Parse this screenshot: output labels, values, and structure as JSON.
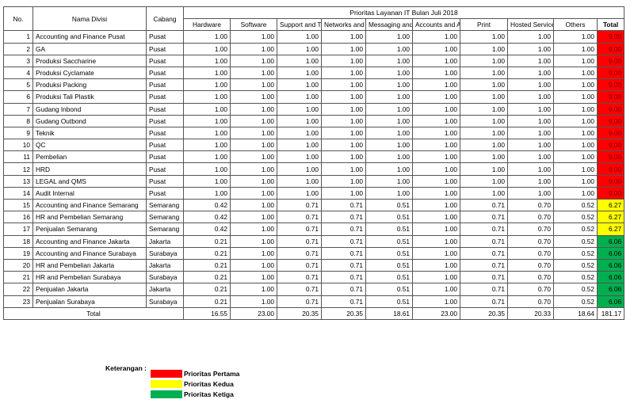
{
  "header": {
    "no": "No.",
    "divisi": "Nama Divisi",
    "cabang": "Cabang",
    "title": "Prioritas Layanan IT Bulan Juli 2018",
    "columns": [
      "Hardware",
      "Software",
      "Support and Training",
      "Networks and Connectivity",
      "Messaging and Collaboration",
      "Accounts and Access",
      "Print",
      "Hosted Services",
      "Others"
    ],
    "total": "Total"
  },
  "colors": {
    "red": "#ff0000",
    "yellow": "#ffff00",
    "green": "#00b050"
  },
  "rows": [
    {
      "no": "1",
      "divisi": "Accounting and Finance Pusat",
      "cabang": "Pusat",
      "values": [
        "1.00",
        "1.00",
        "1.00",
        "1.00",
        "1.00",
        "1.00",
        "1.00",
        "1.00",
        "1.00"
      ],
      "total": "9.00",
      "priority": "red"
    },
    {
      "no": "2",
      "divisi": "GA",
      "cabang": "Pusat",
      "values": [
        "1.00",
        "1.00",
        "1.00",
        "1.00",
        "1.00",
        "1.00",
        "1.00",
        "1.00",
        "1.00"
      ],
      "total": "9.00",
      "priority": "red"
    },
    {
      "no": "3",
      "divisi": "Produksi Saccharine",
      "cabang": "Pusat",
      "values": [
        "1.00",
        "1.00",
        "1.00",
        "1.00",
        "1.00",
        "1.00",
        "1.00",
        "1.00",
        "1.00"
      ],
      "total": "9.00",
      "priority": "red"
    },
    {
      "no": "4",
      "divisi": "Produksi Cyclamate",
      "cabang": "Pusat",
      "values": [
        "1.00",
        "1.00",
        "1.00",
        "1.00",
        "1.00",
        "1.00",
        "1.00",
        "1.00",
        "1.00"
      ],
      "total": "9.00",
      "priority": "red"
    },
    {
      "no": "5",
      "divisi": "Produksi Packing",
      "cabang": "Pusat",
      "values": [
        "1.00",
        "1.00",
        "1.00",
        "1.00",
        "1.00",
        "1.00",
        "1.00",
        "1.00",
        "1.00"
      ],
      "total": "9.00",
      "priority": "red"
    },
    {
      "no": "6",
      "divisi": "Produksi Tali Plastik",
      "cabang": "Pusat",
      "values": [
        "1.00",
        "1.00",
        "1.00",
        "1.00",
        "1.00",
        "1.00",
        "1.00",
        "1.00",
        "1.00"
      ],
      "total": "9.00",
      "priority": "red"
    },
    {
      "no": "7",
      "divisi": "Gudang Inbond",
      "cabang": "Pusat",
      "values": [
        "1.00",
        "1.00",
        "1.00",
        "1.00",
        "1.00",
        "1.00",
        "1.00",
        "1.00",
        "1.00"
      ],
      "total": "9.00",
      "priority": "red"
    },
    {
      "no": "8",
      "divisi": "Gudang Outbond",
      "cabang": "Pusat",
      "values": [
        "1.00",
        "1.00",
        "1.00",
        "1.00",
        "1.00",
        "1.00",
        "1.00",
        "1.00",
        "1.00"
      ],
      "total": "9.00",
      "priority": "red"
    },
    {
      "no": "9",
      "divisi": "Teknik",
      "cabang": "Pusat",
      "values": [
        "1.00",
        "1.00",
        "1.00",
        "1.00",
        "1.00",
        "1.00",
        "1.00",
        "1.00",
        "1.00"
      ],
      "total": "9.00",
      "priority": "red"
    },
    {
      "no": "10",
      "divisi": "QC",
      "cabang": "Pusat",
      "values": [
        "1.00",
        "1.00",
        "1.00",
        "1.00",
        "1.00",
        "1.00",
        "1.00",
        "1.00",
        "1.00"
      ],
      "total": "9.00",
      "priority": "red"
    },
    {
      "no": "11",
      "divisi": "Pembelian",
      "cabang": "Pusat",
      "values": [
        "1.00",
        "1.00",
        "1.00",
        "1.00",
        "1.00",
        "1.00",
        "1.00",
        "1.00",
        "1.00"
      ],
      "total": "9.00",
      "priority": "red"
    },
    {
      "no": "12",
      "divisi": "HRD",
      "cabang": "Pusat",
      "values": [
        "1.00",
        "1.00",
        "1.00",
        "1.00",
        "1.00",
        "1.00",
        "1.00",
        "1.00",
        "1.00"
      ],
      "total": "9.00",
      "priority": "red"
    },
    {
      "no": "13",
      "divisi": "LEGAL and QMS",
      "cabang": "Pusat",
      "values": [
        "1.00",
        "1.00",
        "1.00",
        "1.00",
        "1.00",
        "1.00",
        "1.00",
        "1.00",
        "1.00"
      ],
      "total": "9.00",
      "priority": "red"
    },
    {
      "no": "14",
      "divisi": "Audit Internal",
      "cabang": "Pusat",
      "values": [
        "1.00",
        "1.00",
        "1.00",
        "1.00",
        "1.00",
        "1.00",
        "1.00",
        "1.00",
        "1.00"
      ],
      "total": "9.00",
      "priority": "red"
    },
    {
      "no": "15",
      "divisi": "Accounting and Finance Semarang",
      "cabang": "Semarang",
      "values": [
        "0.42",
        "1.00",
        "0.71",
        "0.71",
        "0.51",
        "1.00",
        "0.71",
        "0.70",
        "0.52"
      ],
      "total": "6.27",
      "priority": "yellow"
    },
    {
      "no": "16",
      "divisi": "HR and Pembelian Semarang",
      "cabang": "Semarang",
      "values": [
        "0.42",
        "1.00",
        "0.71",
        "0.71",
        "0.51",
        "1.00",
        "0.71",
        "0.70",
        "0.52"
      ],
      "total": "6.27",
      "priority": "yellow"
    },
    {
      "no": "17",
      "divisi": "Penjualan Semarang",
      "cabang": "Semarang",
      "values": [
        "0.42",
        "1.00",
        "0.71",
        "0.71",
        "0.51",
        "1.00",
        "0.71",
        "0.70",
        "0.52"
      ],
      "total": "6.27",
      "priority": "yellow"
    },
    {
      "no": "18",
      "divisi": "Accounting and Finance Jakarta",
      "cabang": "Jakarta",
      "values": [
        "0.21",
        "1.00",
        "0.71",
        "0.71",
        "0.51",
        "1.00",
        "0.71",
        "0.70",
        "0.52"
      ],
      "total": "6.06",
      "priority": "green"
    },
    {
      "no": "19",
      "divisi": "Accounting and Finance Surabaya",
      "cabang": "Surabaya",
      "values": [
        "0.21",
        "1.00",
        "0.71",
        "0.71",
        "0.51",
        "1.00",
        "0.71",
        "0.70",
        "0.52"
      ],
      "total": "6.06",
      "priority": "green"
    },
    {
      "no": "20",
      "divisi": "HR and Pembelian Jakarta",
      "cabang": "Jakarta",
      "values": [
        "0.21",
        "1.00",
        "0.71",
        "0.71",
        "0.51",
        "1.00",
        "0.71",
        "0.70",
        "0.52"
      ],
      "total": "6.06",
      "priority": "green"
    },
    {
      "no": "21",
      "divisi": "HR and Pembelian Surabaya",
      "cabang": "Surabaya",
      "values": [
        "0.21",
        "1.00",
        "0.71",
        "0.71",
        "0.51",
        "1.00",
        "0.71",
        "0.70",
        "0.52"
      ],
      "total": "6.06",
      "priority": "green"
    },
    {
      "no": "22",
      "divisi": "Penjualan Jakarta",
      "cabang": "Jakarta",
      "values": [
        "0.21",
        "1.00",
        "0.71",
        "0.71",
        "0.51",
        "1.00",
        "0.71",
        "0.70",
        "0.52"
      ],
      "total": "6.06",
      "priority": "green"
    },
    {
      "no": "23",
      "divisi": "Penjualan Surabaya",
      "cabang": "Surabaya",
      "values": [
        "0.21",
        "1.00",
        "0.71",
        "0.71",
        "0.51",
        "1.00",
        "0.71",
        "0.70",
        "0.52"
      ],
      "total": "6.06",
      "priority": "green"
    }
  ],
  "totals": {
    "label": "Total",
    "values": [
      "16.55",
      "23.00",
      "20.35",
      "20.35",
      "18.61",
      "23.00",
      "20.35",
      "20.33",
      "18.64"
    ],
    "grand": "181.17"
  },
  "legend": {
    "title": "Keterangan :",
    "items": [
      {
        "label": "Prioritas Pertama",
        "color": "red"
      },
      {
        "label": "Prioritas Kedua",
        "color": "yellow"
      },
      {
        "label": "Prioritas Ketiga",
        "color": "green"
      }
    ]
  }
}
